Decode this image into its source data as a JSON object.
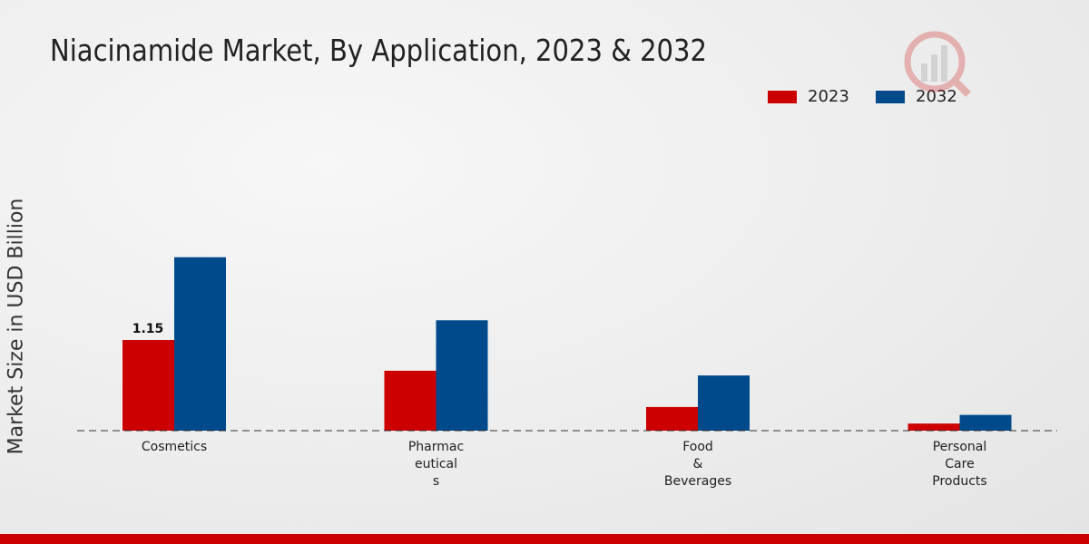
{
  "chart_data": {
    "type": "bar",
    "title": "Niacinamide Market, By Application, 2023 & 2032",
    "ylabel": "Market Size in USD Billion",
    "xlabel": "",
    "categories": [
      [
        "Cosmetics"
      ],
      [
        "Pharmac",
        "eutical",
        "s"
      ],
      [
        "Food",
        "&",
        "Beverages"
      ],
      [
        "Personal",
        "Care",
        "Products"
      ]
    ],
    "series": [
      {
        "name": "2023",
        "color": "#cc0000",
        "values": [
          1.15,
          0.76,
          0.3,
          0.09
        ]
      },
      {
        "name": "2032",
        "color": "#004a8b",
        "values": [
          2.2,
          1.4,
          0.7,
          0.2
        ]
      }
    ],
    "data_labels": [
      {
        "series": 0,
        "index": 0,
        "text": "1.15"
      }
    ],
    "ylim": [
      0,
      2.5
    ],
    "grid": false,
    "legend_position": "top-right"
  }
}
